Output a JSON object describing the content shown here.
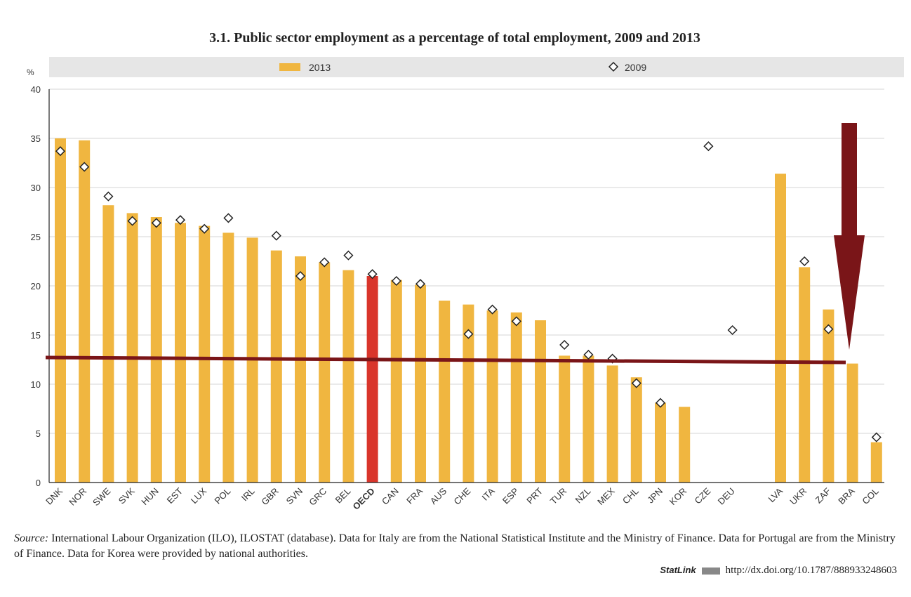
{
  "chart_data": {
    "type": "bar",
    "title": "3.1.  Public sector employment as a percentage of total employment, 2009 and 2013",
    "ylabel": "%",
    "xlabel": "",
    "ylim": [
      0,
      40
    ],
    "yticks": [
      0,
      5,
      10,
      15,
      20,
      25,
      30,
      35,
      40
    ],
    "grid": true,
    "legend_position": "top",
    "categories": [
      "DNK",
      "NOR",
      "SWE",
      "SVK",
      "HUN",
      "EST",
      "LUX",
      "POL",
      "IRL",
      "GBR",
      "SVN",
      "GRC",
      "BEL",
      "OECD",
      "CAN",
      "FRA",
      "AUS",
      "CHE",
      "ITA",
      "ESP",
      "PRT",
      "TUR",
      "NZL",
      "MEX",
      "CHL",
      "JPN",
      "KOR",
      "CZE",
      "DEU",
      "LVA",
      "UKR",
      "ZAF",
      "BRA",
      "COL"
    ],
    "second_group_start": "LVA",
    "highlight": "OECD",
    "series": [
      {
        "name": "2013",
        "type": "bar",
        "color": "#f0b640",
        "values": [
          35.0,
          34.8,
          28.2,
          27.4,
          27.0,
          26.4,
          26.1,
          25.4,
          24.9,
          23.6,
          23.0,
          22.4,
          21.6,
          21.0,
          20.6,
          20.1,
          18.5,
          18.1,
          17.5,
          17.3,
          16.5,
          12.9,
          12.9,
          11.9,
          10.7,
          8.1,
          7.7,
          null,
          null,
          31.4,
          21.9,
          17.6,
          12.1,
          4.1
        ]
      },
      {
        "name": "2009",
        "type": "scatter",
        "marker": "diamond",
        "values": [
          33.7,
          32.1,
          29.1,
          26.6,
          26.4,
          26.7,
          25.8,
          26.9,
          null,
          25.1,
          21.0,
          22.4,
          23.1,
          21.2,
          20.5,
          20.2,
          null,
          15.1,
          17.6,
          16.4,
          null,
          14.0,
          13.0,
          12.6,
          10.1,
          8.1,
          null,
          34.2,
          15.5,
          null,
          22.5,
          15.6,
          null,
          4.6
        ]
      }
    ],
    "annotations": {
      "reference_line_value": 12.2,
      "arrow_target": "BRA",
      "annotation_color": "#7a1518",
      "highlight_color": "#d9352b"
    }
  },
  "footer": {
    "source_label": "Source:",
    "source_text": "International Labour Organization (ILO), ILOSTAT (database). Data for Italy are from the National Statistical Institute and the Ministry of Finance. Data for Portugal are from the Ministry of Finance. Data for Korea were provided by national authorities.",
    "statlink_label": "StatLink",
    "statlink_url": "http://dx.doi.org/10.1787/888933248603"
  }
}
